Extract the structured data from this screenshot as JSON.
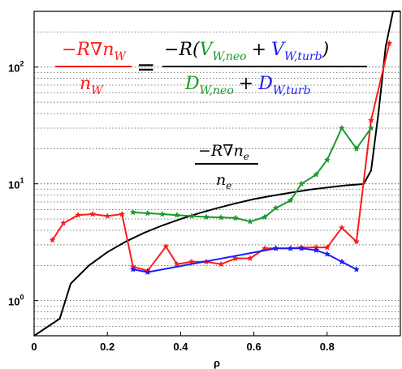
{
  "chart_data": {
    "type": "line",
    "title": "",
    "xlabel": "ρ",
    "ylabel": "",
    "xlim": [
      0,
      1
    ],
    "ylim": [
      0.5,
      300
    ],
    "yscale": "log",
    "grid": "y-major-and-minor-dotted",
    "x_ticks": [
      "0",
      "0.2",
      "0.4",
      "0.6",
      "0.8"
    ],
    "y_ticks": [
      {
        "base": "10",
        "exp": "0",
        "value": 1
      },
      {
        "base": "10",
        "exp": "1",
        "value": 10
      },
      {
        "base": "10",
        "exp": "2",
        "value": 100
      }
    ],
    "series": [
      {
        "color": "#000000",
        "marker": "none",
        "x": [
          0.0,
          0.07,
          0.1,
          0.15,
          0.2,
          0.25,
          0.3,
          0.35,
          0.4,
          0.45,
          0.5,
          0.55,
          0.6,
          0.65,
          0.7,
          0.75,
          0.8,
          0.85,
          0.89,
          0.9,
          0.92,
          0.94,
          0.96,
          0.98,
          1.0
        ],
        "y": [
          0.5,
          0.7,
          1.4,
          2.0,
          2.6,
          3.2,
          3.8,
          4.4,
          5.0,
          5.6,
          6.2,
          6.8,
          7.4,
          7.9,
          8.4,
          8.9,
          9.3,
          9.7,
          9.9,
          10.0,
          13.0,
          40.0,
          150.0,
          300.0,
          300.0
        ]
      },
      {
        "color": "#ff1a1a",
        "marker": "star",
        "x": [
          0.05,
          0.08,
          0.12,
          0.16,
          0.2,
          0.24,
          0.27,
          0.31,
          0.36,
          0.39,
          0.43,
          0.47,
          0.51,
          0.55,
          0.59,
          0.63,
          0.66,
          0.7,
          0.73,
          0.77,
          0.8,
          0.84,
          0.88,
          0.92,
          0.97
        ],
        "y": [
          3.3,
          4.6,
          5.4,
          5.5,
          5.3,
          5.5,
          1.95,
          1.8,
          2.9,
          2.05,
          2.15,
          2.15,
          2.05,
          2.3,
          2.3,
          2.8,
          2.8,
          2.8,
          2.85,
          2.85,
          2.85,
          4.2,
          3.2,
          35.0,
          160.0
        ]
      },
      {
        "color": "#1a9a2a",
        "marker": "star",
        "x": [
          0.27,
          0.31,
          0.35,
          0.39,
          0.43,
          0.47,
          0.51,
          0.55,
          0.59,
          0.63,
          0.66,
          0.7,
          0.73,
          0.77,
          0.8,
          0.84,
          0.88,
          0.92
        ],
        "y": [
          5.7,
          5.6,
          5.5,
          5.4,
          5.3,
          5.2,
          5.15,
          5.1,
          4.75,
          5.2,
          6.2,
          7.2,
          10.0,
          12.0,
          16.0,
          30.0,
          20.0,
          30.0
        ]
      },
      {
        "color": "#1a1aff",
        "marker": "star",
        "x": [
          0.27,
          0.31,
          0.66,
          0.7,
          0.73,
          0.77,
          0.8,
          0.84,
          0.88
        ],
        "y": [
          1.85,
          1.75,
          2.8,
          2.8,
          2.8,
          2.7,
          2.5,
          2.15,
          1.85
        ]
      }
    ],
    "annotations": {
      "lhs_num": "−R∇n",
      "lhs_num_sub": "W",
      "lhs_den": "n",
      "lhs_den_sub": "W",
      "equals": "=",
      "rhs_num_pre": "−R(",
      "rhs_v1": "V",
      "rhs_v1_sub": "W,neo",
      "rhs_plus": "+",
      "rhs_v2": "V",
      "rhs_v2_sub": "W,turb",
      "rhs_num_post": ")",
      "rhs_d1": "D",
      "rhs_d1_sub": "W,neo",
      "rhs_d2": "D",
      "rhs_d2_sub": "W,turb",
      "ne_num": "−R∇n",
      "ne_num_sub": "e",
      "ne_den": "n",
      "ne_den_sub": "e"
    },
    "colors": {
      "red": "#ff1a1a",
      "green": "#1a9a2a",
      "blue": "#1a1aff",
      "black": "#000000"
    }
  }
}
